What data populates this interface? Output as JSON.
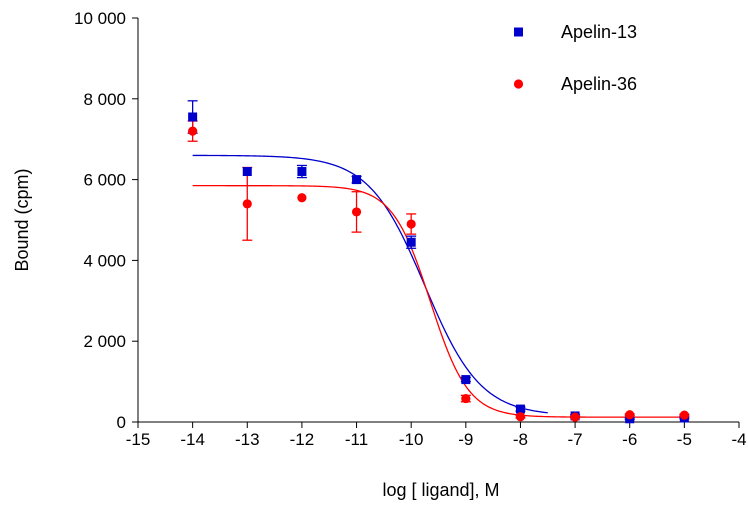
{
  "chart_data": {
    "type": "scatter",
    "title": "",
    "xlabel": "log [ ligand], M",
    "ylabel": "Bound (cpm)",
    "xlim": [
      -15,
      -4
    ],
    "ylim": [
      0,
      10000
    ],
    "x_ticks": [
      -15,
      -14,
      -13,
      -12,
      -11,
      -10,
      -9,
      -8,
      -7,
      -6,
      -5,
      -4
    ],
    "x_tick_labels": [
      "-15",
      "-14",
      "-13",
      "-12",
      "-11",
      "-10",
      "-9",
      "-8",
      "-7",
      "-6",
      "-5",
      "-4"
    ],
    "y_ticks": [
      0,
      2000,
      4000,
      6000,
      8000,
      10000
    ],
    "y_tick_labels": [
      "0",
      "2 000",
      "4 000",
      "6 000",
      "8 000",
      "10 000"
    ],
    "grid": false,
    "legend_position": "top-right",
    "series": [
      {
        "name": "Apelin-13",
        "color": "#0000cc",
        "marker": "square",
        "x": [
          -14,
          -13,
          -12,
          -11,
          -10,
          -9,
          -8,
          -7,
          -6,
          -5
        ],
        "y": [
          7550,
          6200,
          6200,
          6000,
          4450,
          1050,
          320,
          150,
          80,
          100
        ],
        "err": [
          400,
          0,
          150,
          80,
          150,
          50,
          50,
          30,
          20,
          20
        ],
        "fit": {
          "top": 6600,
          "bottom": 150,
          "logIC50": -9.75,
          "hill": -0.85,
          "x_range": [
            -14,
            -7.5
          ]
        }
      },
      {
        "name": "Apelin-36",
        "color": "#ff0000",
        "marker": "circle",
        "x": [
          -14,
          -13,
          -12,
          -11,
          -10,
          -9,
          -8,
          -7,
          -6,
          -5
        ],
        "y": [
          7200,
          5400,
          5550,
          5200,
          4900,
          580,
          130,
          120,
          180,
          170
        ],
        "err": [
          250,
          900,
          0,
          500,
          250,
          80,
          30,
          20,
          20,
          20
        ],
        "fit": {
          "top": 5850,
          "bottom": 120,
          "logIC50": -9.65,
          "hill": -1.25,
          "x_range": [
            -14,
            -5
          ]
        }
      }
    ]
  }
}
